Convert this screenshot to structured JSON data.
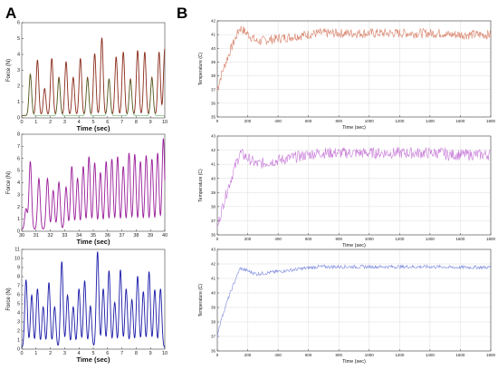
{
  "panels": {
    "a": "A",
    "b": "B"
  },
  "chart_data": [
    {
      "panel": "A",
      "type": "line",
      "xlabel": "Time (sec)",
      "ylabel": "Force (N)",
      "xlim": [
        0,
        10
      ],
      "ylim": [
        0,
        6
      ],
      "xticks": [
        "0",
        "1",
        "2",
        "3",
        "4",
        "5",
        "6",
        "7",
        "8",
        "9",
        "10"
      ],
      "yticks": [
        "0",
        "1",
        "2",
        "3",
        "4",
        "5",
        "6"
      ],
      "series": [
        {
          "color": "#8a2a1a",
          "peaks": [
            [
              0.6,
              2.6
            ],
            [
              1.1,
              3.5
            ],
            [
              1.6,
              1.7
            ],
            [
              2.1,
              3.6
            ],
            [
              2.6,
              2.4
            ],
            [
              3.1,
              3.4
            ],
            [
              3.6,
              2.4
            ],
            [
              4.1,
              3.6
            ],
            [
              4.6,
              2.4
            ],
            [
              5.1,
              3.9
            ],
            [
              5.6,
              4.9
            ],
            [
              6.1,
              2.3
            ],
            [
              6.6,
              3.7
            ],
            [
              7.1,
              4.0
            ],
            [
              7.6,
              2.3
            ],
            [
              8.1,
              4.1
            ],
            [
              8.6,
              4.0
            ],
            [
              9.1,
              2.4
            ],
            [
              9.6,
              4.0
            ],
            [
              10.0,
              4.2
            ]
          ],
          "secondary_color": "#2a8a2a",
          "secondary_peaks": [
            [
              0.6,
              2.6
            ],
            [
              2.6,
              2.3
            ],
            [
              4.6,
              2.3
            ],
            [
              6.1,
              2.3
            ],
            [
              7.6,
              2.2
            ],
            [
              9.1,
              2.3
            ]
          ]
        }
      ]
    },
    {
      "panel": "A",
      "type": "line",
      "xlabel": "Time (sec)",
      "ylabel": "Force (N)",
      "xlim": [
        30,
        40
      ],
      "ylim": [
        0,
        8
      ],
      "xticks": [
        "30",
        "31",
        "32",
        "33",
        "34",
        "35",
        "36",
        "37",
        "38",
        "39",
        "40"
      ],
      "yticks": [
        "0",
        "1",
        "2",
        "3",
        "4",
        "5",
        "6",
        "7",
        "8"
      ],
      "series": [
        {
          "color": "#9a1c9a",
          "peaks": [
            [
              30.3,
              1.7
            ],
            [
              30.6,
              5.6
            ],
            [
              31.2,
              4.2
            ],
            [
              31.8,
              4.2
            ],
            [
              32.2,
              3.2
            ],
            [
              32.6,
              3.9
            ],
            [
              33.1,
              3.5
            ],
            [
              33.5,
              5.2
            ],
            [
              33.9,
              4.2
            ],
            [
              34.3,
              5.2
            ],
            [
              34.7,
              6.0
            ],
            [
              35.1,
              5.5
            ],
            [
              35.5,
              4.7
            ],
            [
              35.9,
              5.6
            ],
            [
              36.3,
              5.8
            ],
            [
              36.7,
              6.0
            ],
            [
              37.1,
              5.2
            ],
            [
              37.5,
              6.3
            ],
            [
              37.9,
              6.2
            ],
            [
              38.3,
              5.6
            ],
            [
              38.7,
              6.1
            ],
            [
              39.1,
              5.8
            ],
            [
              39.5,
              6.3
            ],
            [
              39.9,
              7.5
            ]
          ]
        }
      ]
    },
    {
      "panel": "A",
      "type": "line",
      "xlabel": "Time (sec)",
      "ylabel": "Force (N)",
      "xlim": [
        0,
        10
      ],
      "ylim": [
        0,
        11
      ],
      "xticks": [
        "0",
        "1",
        "2",
        "3",
        "4",
        "5",
        "6",
        "7",
        "8",
        "9",
        "10"
      ],
      "yticks": [
        "0",
        "1",
        "2",
        "3",
        "4",
        "5",
        "6",
        "7",
        "8",
        "9",
        "10",
        "11"
      ],
      "series": [
        {
          "color": "#1a1aa8",
          "peaks": [
            [
              0.3,
              7.5
            ],
            [
              0.7,
              5.8
            ],
            [
              1.1,
              6.5
            ],
            [
              1.5,
              4.5
            ],
            [
              1.9,
              7.2
            ],
            [
              2.3,
              4.5
            ],
            [
              2.8,
              9.5
            ],
            [
              3.2,
              5.8
            ],
            [
              3.6,
              4.5
            ],
            [
              4.0,
              6.5
            ],
            [
              4.4,
              7.4
            ],
            [
              4.8,
              4.6
            ],
            [
              5.3,
              10.6
            ],
            [
              5.7,
              6.5
            ],
            [
              6.1,
              8.5
            ],
            [
              6.5,
              5.0
            ],
            [
              6.9,
              8.6
            ],
            [
              7.3,
              6.5
            ],
            [
              7.7,
              5.3
            ],
            [
              8.1,
              7.9
            ],
            [
              8.5,
              6.2
            ],
            [
              8.9,
              8.4
            ],
            [
              9.3,
              6.4
            ],
            [
              9.7,
              6.5
            ]
          ]
        }
      ]
    },
    {
      "panel": "B",
      "type": "line",
      "xlabel": "Time (sec)",
      "ylabel": "Temperature (C)",
      "xlim": [
        0,
        1800
      ],
      "ylim": [
        35,
        42
      ],
      "xticks": [
        "0",
        "200",
        "400",
        "600",
        "800",
        "1000",
        "1200",
        "1400",
        "1600",
        "1800"
      ],
      "yticks": [
        "35",
        "36",
        "37",
        "38",
        "39",
        "40",
        "41",
        "42"
      ],
      "series": [
        {
          "color": "#d8826a",
          "start": 36.9,
          "peak": 41.5,
          "dip": 40.5,
          "plateau": 41.1,
          "noise": 0.35
        }
      ]
    },
    {
      "panel": "B",
      "type": "line",
      "xlabel": "Time (sec)",
      "ylabel": "Temperature (C)",
      "xlim": [
        0,
        1800
      ],
      "ylim": [
        36,
        43
      ],
      "xticks": [
        "0",
        "200",
        "400",
        "600",
        "800",
        "1000",
        "1200",
        "1400",
        "1600",
        "1800"
      ],
      "yticks": [
        "36",
        "37",
        "38",
        "39",
        "40",
        "41",
        "42",
        "43"
      ],
      "series": [
        {
          "color": "#c77ad8",
          "start": 36.3,
          "peak": 41.8,
          "dip": 41.0,
          "plateau": 41.8,
          "noise": 0.4
        }
      ]
    },
    {
      "panel": "B",
      "type": "line",
      "xlabel": "Time (sec)",
      "ylabel": "Temperature (C)",
      "xlim": [
        0,
        1800
      ],
      "ylim": [
        36,
        43
      ],
      "xticks": [
        "0",
        "200",
        "400",
        "600",
        "800",
        "1000",
        "1200",
        "1400",
        "1600",
        "1800"
      ],
      "yticks": [
        "36",
        "37",
        "38",
        "39",
        "40",
        "41",
        "42",
        "43"
      ],
      "series": [
        {
          "color": "#7a88dc",
          "start": 37.0,
          "peak": 41.7,
          "dip": 41.3,
          "plateau": 41.8,
          "noise": 0.12
        }
      ]
    }
  ]
}
